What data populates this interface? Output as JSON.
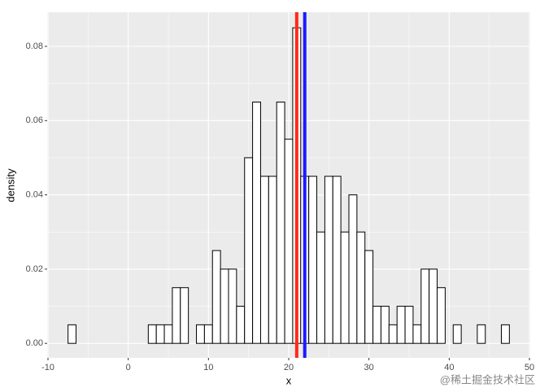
{
  "chart_data": {
    "type": "histogram",
    "x_label": "x",
    "y_label": "density",
    "bins": [
      -7.5,
      -6.5,
      -5.5,
      -4.5,
      -3.5,
      -2.5,
      -1.5,
      -0.5,
      0.5,
      1.5,
      2.5,
      3.5,
      4.5,
      5.5,
      6.5,
      7.5,
      8.5,
      9.5,
      10.5,
      11.5,
      12.5,
      13.5,
      14.5,
      15.5,
      16.5,
      17.5,
      18.5,
      19.5,
      20.5,
      21.5,
      22.5,
      23.5,
      24.5,
      25.5,
      26.5,
      27.5,
      28.5,
      29.5,
      30.5,
      31.5,
      32.5,
      33.5,
      34.5,
      35.5,
      36.5,
      37.5,
      38.5,
      39.5,
      40.5,
      41.5,
      42.5,
      43.5,
      44.5,
      45.5,
      46.5,
      47.5
    ],
    "values": [
      0.005,
      0,
      0,
      0,
      0,
      0,
      0,
      0,
      0,
      0,
      0.005,
      0.005,
      0.005,
      0.015,
      0.015,
      0,
      0.005,
      0.005,
      0.025,
      0.02,
      0.02,
      0.01,
      0.05,
      0.065,
      0.045,
      0.045,
      0.065,
      0.055,
      0.085,
      0.045,
      0.045,
      0.03,
      0.045,
      0.045,
      0.03,
      0.04,
      0.03,
      0.025,
      0.01,
      0.01,
      0.005,
      0.01,
      0.01,
      0.005,
      0.02,
      0.02,
      0.015,
      0,
      0.005,
      0,
      0,
      0.005,
      0,
      0,
      0.005
    ],
    "color": "#ffffff",
    "edge_color": "#000000",
    "vlines": [
      {
        "value": 21.0,
        "color": "#ff2a1a"
      },
      {
        "value": 22.0,
        "color": "#1a1aff"
      }
    ],
    "xlim": [
      -10.1,
      50.1
    ],
    "xticks": [
      -10,
      0,
      10,
      20,
      30,
      40,
      50
    ],
    "ylim": [
      -0.0039,
      0.0892
    ],
    "yticks": [
      {
        "value": 0,
        "label": "0.00"
      },
      {
        "value": 0.02,
        "label": "0.02"
      },
      {
        "value": 0.04,
        "label": "0.04"
      },
      {
        "value": 0.06,
        "label": "0.06"
      },
      {
        "value": 0.08,
        "label": "0.08"
      }
    ],
    "grid": true
  },
  "watermark": "@稀土掘金技术社区"
}
